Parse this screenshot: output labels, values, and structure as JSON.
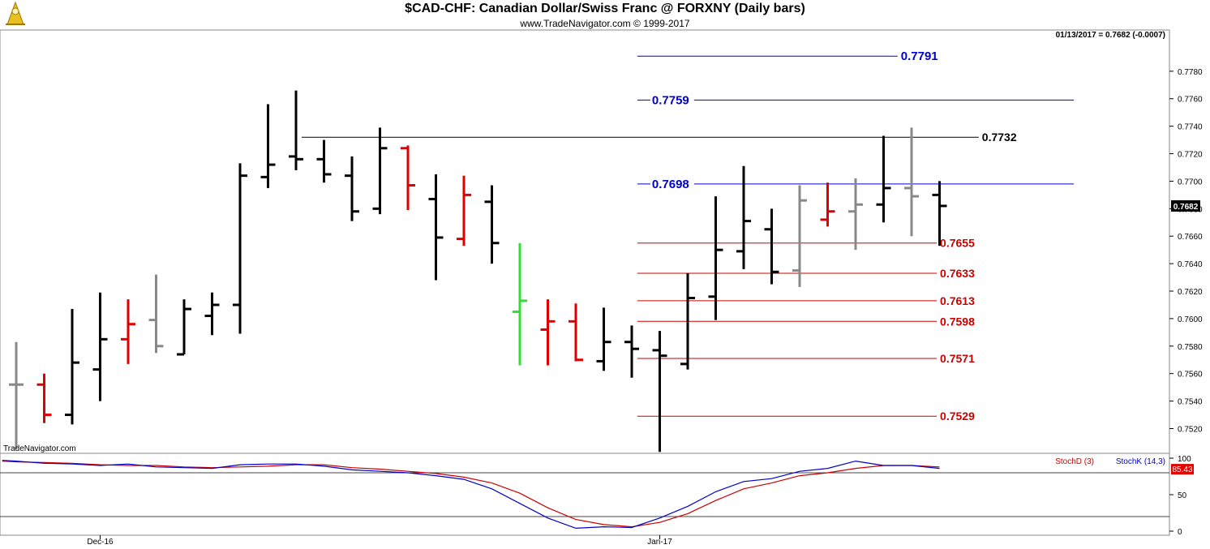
{
  "chart_data": {
    "type": "ohlc",
    "title": "$CAD-CHF:  Canadian Dollar/Swiss Franc @ FORXNY  (Daily bars)",
    "subtitle": "www.TradeNavigator.com © 1999-2017",
    "watermark": "TradeNavigator.com",
    "readout": "01/13/2017 = 0.7682 (-0.0007)",
    "last_price": "0.7682",
    "ylim": [
      0.7502,
      0.781
    ],
    "y_ticks": [
      "0.7780",
      "0.7760",
      "0.7740",
      "0.7720",
      "0.7700",
      "0.7680",
      "0.7660",
      "0.7640",
      "0.7620",
      "0.7600",
      "0.7580",
      "0.7560",
      "0.7540",
      "0.7520"
    ],
    "x_labels": [
      {
        "index": 3,
        "label": "Dec-16"
      },
      {
        "index": 23,
        "label": "Jan-17"
      }
    ],
    "colors": {
      "up": "#000000",
      "down": "#e00000",
      "neutral": "#888888",
      "breakout": "#33dd33",
      "projection": "#0000cc",
      "support": "#cc0000",
      "resistance": "#000000"
    },
    "bars": [
      {
        "o": 0.7552,
        "h": 0.7583,
        "l": 0.7505,
        "c": 0.7552,
        "color": "neutral"
      },
      {
        "o": 0.7552,
        "h": 0.756,
        "l": 0.7524,
        "c": 0.753,
        "color": "down"
      },
      {
        "o": 0.753,
        "h": 0.7607,
        "l": 0.7523,
        "c": 0.7568,
        "color": "up"
      },
      {
        "o": 0.7563,
        "h": 0.7619,
        "l": 0.754,
        "c": 0.7585,
        "color": "up"
      },
      {
        "o": 0.7585,
        "h": 0.7614,
        "l": 0.7567,
        "c": 0.7596,
        "color": "down"
      },
      {
        "o": 0.7599,
        "h": 0.7632,
        "l": 0.7575,
        "c": 0.758,
        "color": "neutral"
      },
      {
        "o": 0.7574,
        "h": 0.7614,
        "l": 0.7574,
        "c": 0.7607,
        "color": "up"
      },
      {
        "o": 0.7602,
        "h": 0.7619,
        "l": 0.7588,
        "c": 0.761,
        "color": "up"
      },
      {
        "o": 0.761,
        "h": 0.7713,
        "l": 0.7589,
        "c": 0.7704,
        "color": "up"
      },
      {
        "o": 0.7703,
        "h": 0.7756,
        "l": 0.7695,
        "c": 0.7712,
        "color": "up"
      },
      {
        "o": 0.7718,
        "h": 0.7766,
        "l": 0.7708,
        "c": 0.7716,
        "color": "up"
      },
      {
        "o": 0.7716,
        "h": 0.773,
        "l": 0.7699,
        "c": 0.7705,
        "color": "up"
      },
      {
        "o": 0.7704,
        "h": 0.7718,
        "l": 0.7671,
        "c": 0.7678,
        "color": "up"
      },
      {
        "o": 0.768,
        "h": 0.7739,
        "l": 0.7676,
        "c": 0.7724,
        "color": "up"
      },
      {
        "o": 0.7724,
        "h": 0.7726,
        "l": 0.7679,
        "c": 0.7697,
        "color": "down"
      },
      {
        "o": 0.7687,
        "h": 0.7705,
        "l": 0.7628,
        "c": 0.7659,
        "color": "up"
      },
      {
        "o": 0.7658,
        "h": 0.7704,
        "l": 0.7653,
        "c": 0.769,
        "color": "down"
      },
      {
        "o": 0.7685,
        "h": 0.7697,
        "l": 0.764,
        "c": 0.7655,
        "color": "up"
      },
      {
        "o": 0.7605,
        "h": 0.7655,
        "l": 0.7566,
        "c": 0.7613,
        "color": "breakout"
      },
      {
        "o": 0.7592,
        "h": 0.7614,
        "l": 0.7566,
        "c": 0.7598,
        "color": "down"
      },
      {
        "o": 0.7598,
        "h": 0.7611,
        "l": 0.7569,
        "c": 0.757,
        "color": "down"
      },
      {
        "o": 0.7569,
        "h": 0.7608,
        "l": 0.7562,
        "c": 0.7583,
        "color": "up"
      },
      {
        "o": 0.7583,
        "h": 0.7595,
        "l": 0.7557,
        "c": 0.7578,
        "color": "up"
      },
      {
        "o": 0.7577,
        "h": 0.7591,
        "l": 0.7503,
        "c": 0.7573,
        "color": "up"
      },
      {
        "o": 0.7567,
        "h": 0.7633,
        "l": 0.7563,
        "c": 0.7615,
        "color": "up"
      },
      {
        "o": 0.7616,
        "h": 0.7689,
        "l": 0.7599,
        "c": 0.765,
        "color": "up"
      },
      {
        "o": 0.7649,
        "h": 0.7711,
        "l": 0.7636,
        "c": 0.7671,
        "color": "up"
      },
      {
        "o": 0.7665,
        "h": 0.768,
        "l": 0.7625,
        "c": 0.7634,
        "color": "up"
      },
      {
        "o": 0.7635,
        "h": 0.7697,
        "l": 0.7623,
        "c": 0.7686,
        "color": "neutral"
      },
      {
        "o": 0.7672,
        "h": 0.7699,
        "l": 0.7667,
        "c": 0.7678,
        "color": "down"
      },
      {
        "o": 0.7678,
        "h": 0.7702,
        "l": 0.765,
        "c": 0.7683,
        "color": "neutral"
      },
      {
        "o": 0.7683,
        "h": 0.7733,
        "l": 0.767,
        "c": 0.7695,
        "color": "up"
      },
      {
        "o": 0.7695,
        "h": 0.7739,
        "l": 0.766,
        "c": 0.7689,
        "color": "neutral"
      },
      {
        "o": 0.769,
        "h": 0.77,
        "l": 0.7653,
        "c": 0.7682,
        "color": "up"
      }
    ],
    "levels": [
      {
        "value": 0.7791,
        "label": "0.7791",
        "kind": "projection",
        "from": 22.2,
        "to": 31.5,
        "label_pos": "right"
      },
      {
        "value": 0.7759,
        "label": "0.7759",
        "kind": "projection",
        "from": 22.2,
        "to": 37.8,
        "label_pos": "left"
      },
      {
        "value": 0.7732,
        "label": "0.7732",
        "kind": "resistance",
        "from": 10.2,
        "to": 34.4,
        "label_pos": "right"
      },
      {
        "value": 0.7698,
        "label": "0.7698",
        "kind": "projection",
        "from": 22.2,
        "to": 37.8,
        "label_pos": "left"
      },
      {
        "value": 0.7655,
        "label": "0.7655",
        "kind": "support",
        "from": 22.2,
        "to": 32.9,
        "label_pos": "right"
      },
      {
        "value": 0.7633,
        "label": "0.7633",
        "kind": "support",
        "from": 22.2,
        "to": 32.9,
        "label_pos": "right"
      },
      {
        "value": 0.7613,
        "label": "0.7613",
        "kind": "support",
        "from": 22.2,
        "to": 32.9,
        "label_pos": "right"
      },
      {
        "value": 0.7598,
        "label": "0.7598",
        "kind": "support",
        "from": 22.2,
        "to": 32.9,
        "label_pos": "right"
      },
      {
        "value": 0.7571,
        "label": "0.7571",
        "kind": "support",
        "from": 22.2,
        "to": 32.9,
        "label_pos": "right"
      },
      {
        "value": 0.7529,
        "label": "0.7529",
        "kind": "support",
        "from": 22.2,
        "to": 32.9,
        "label_pos": "right"
      }
    ],
    "stochastic": {
      "ylim": [
        0,
        100
      ],
      "y_ticks": [
        "100",
        "50",
        "0"
      ],
      "ref_lines": [
        80,
        20
      ],
      "last_value": "85.43",
      "d_label": "StochD (3)",
      "k_label": "StochK (14,3)",
      "d_color": "#cc0000",
      "k_color": "#0000cc",
      "x": [
        -0.5,
        0,
        1,
        2,
        3,
        4,
        5,
        6,
        7,
        8,
        9,
        10,
        11,
        12,
        13,
        14,
        15,
        16,
        17,
        18,
        19,
        20,
        21,
        22,
        23,
        24,
        25,
        26,
        27,
        28,
        29,
        30,
        31,
        32,
        33
      ],
      "k": [
        97,
        96,
        93,
        92,
        90,
        92,
        88,
        87,
        86,
        91,
        92,
        92,
        89,
        84,
        82,
        80,
        76,
        71,
        58,
        38,
        18,
        4,
        6,
        5,
        18,
        34,
        54,
        68,
        72,
        82,
        86,
        96,
        90,
        90,
        86
      ],
      "d": [
        96,
        95,
        94,
        93,
        91,
        90,
        90,
        88,
        87,
        88,
        89,
        91,
        91,
        87,
        85,
        82,
        79,
        74,
        66,
        52,
        32,
        16,
        9,
        6,
        12,
        24,
        42,
        58,
        66,
        76,
        80,
        86,
        90,
        90,
        88
      ]
    }
  }
}
